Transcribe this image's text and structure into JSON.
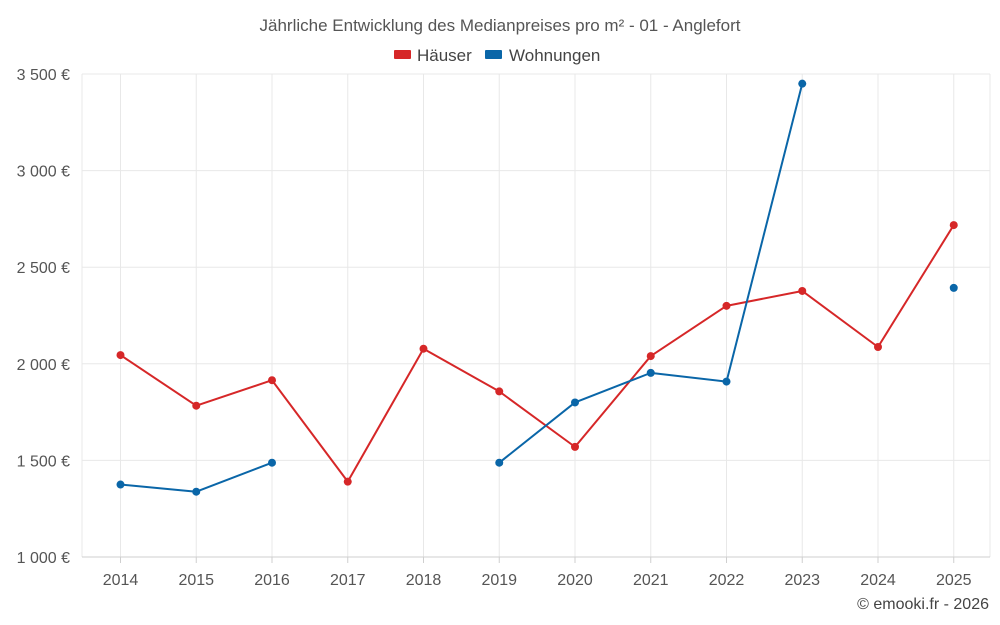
{
  "chart_data": {
    "type": "line",
    "title": "Jährliche Entwicklung des Medianpreises pro m² - 01 - Anglefort",
    "categories": [
      "2014",
      "2015",
      "2016",
      "2017",
      "2018",
      "2019",
      "2020",
      "2021",
      "2022",
      "2023",
      "2024",
      "2025"
    ],
    "series": [
      {
        "name": "Häuser",
        "color": "#d62728",
        "values": [
          2045,
          1783,
          1915,
          1390,
          2078,
          1857,
          1570,
          2040,
          2300,
          2377,
          2087,
          2718
        ]
      },
      {
        "name": "Wohnungen",
        "color": "#0a66a8",
        "values": [
          1375,
          1338,
          1488,
          null,
          null,
          1488,
          1800,
          1953,
          1908,
          3450,
          null,
          2393
        ]
      }
    ],
    "yticks": [
      1000,
      1500,
      2000,
      2500,
      3000,
      3500
    ],
    "ytick_labels": [
      "1 000 €",
      "1 500 €",
      "2 000 €",
      "2 500 €",
      "3 000 €",
      "3 500 €"
    ],
    "ylim": [
      1000,
      3550
    ],
    "legend_position": "top-center",
    "grid": true,
    "xlabel": "",
    "ylabel": ""
  },
  "credit": "© emooki.fr - 2026"
}
